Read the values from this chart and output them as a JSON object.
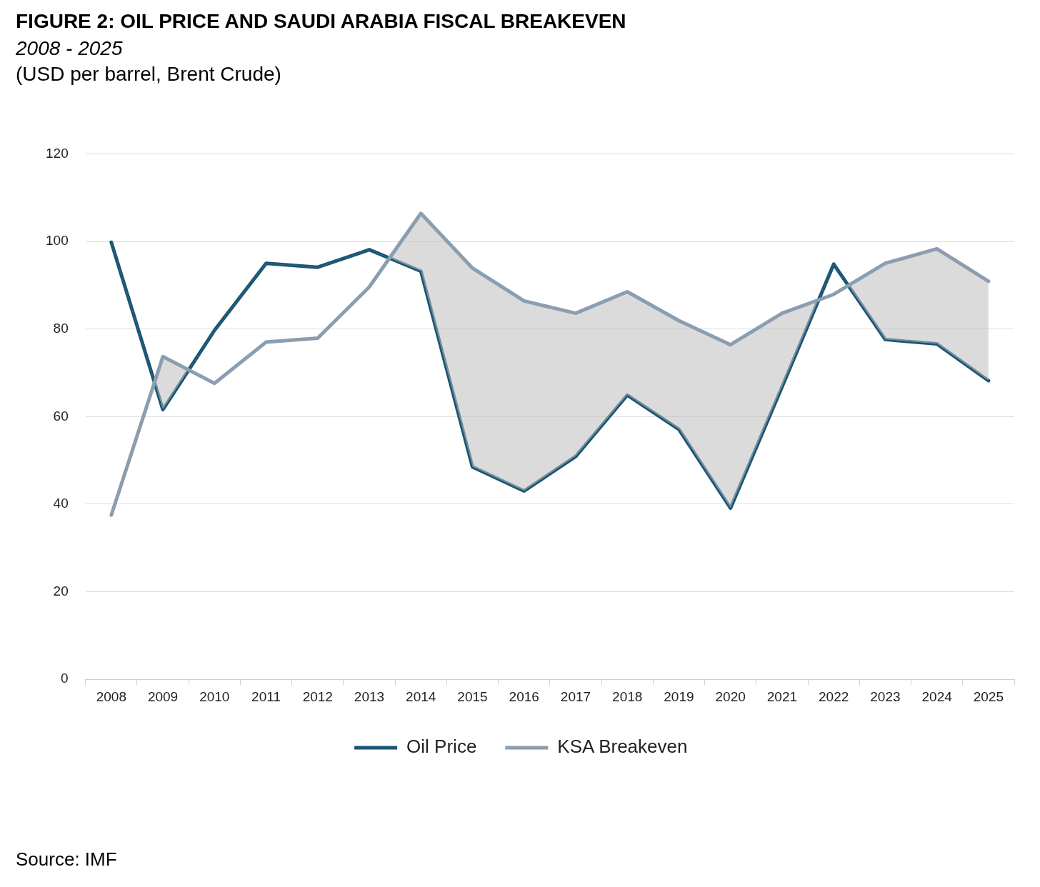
{
  "chart_data": {
    "type": "line",
    "title": "FIGURE 2: OIL PRICE AND SAUDI ARABIA FISCAL BREAKEVEN",
    "subtitle": "2008 - 2025",
    "annotations": [
      "(USD per barrel, Brent Crude)",
      "Source: IMF"
    ],
    "categories": [
      "2008",
      "2009",
      "2010",
      "2011",
      "2012",
      "2013",
      "2014",
      "2015",
      "2016",
      "2017",
      "2018",
      "2019",
      "2020",
      "2021",
      "2022",
      "2023",
      "2024",
      "2025"
    ],
    "series": [
      {
        "name": "Oil Price",
        "color": "#1b5573",
        "values": [
          99.8,
          61.6,
          79.7,
          95.0,
          94.1,
          98.1,
          93.2,
          48.5,
          43.0,
          50.9,
          64.9,
          57.1,
          39.1,
          66.8,
          94.8,
          77.6,
          76.6,
          68.2
        ]
      },
      {
        "name": "KSA Breakeven",
        "color": "#8b9eb0",
        "values": [
          37.5,
          73.7,
          67.6,
          77.0,
          77.9,
          89.6,
          106.4,
          93.9,
          86.4,
          83.6,
          88.5,
          81.9,
          76.4,
          83.6,
          87.9,
          95.0,
          98.3,
          90.9
        ]
      }
    ],
    "ylim": [
      0,
      120
    ],
    "yticks": [
      0,
      20,
      40,
      60,
      80,
      100,
      120
    ],
    "grid": "y",
    "legend": "bottom",
    "marker": "none",
    "line_style": "solid"
  }
}
